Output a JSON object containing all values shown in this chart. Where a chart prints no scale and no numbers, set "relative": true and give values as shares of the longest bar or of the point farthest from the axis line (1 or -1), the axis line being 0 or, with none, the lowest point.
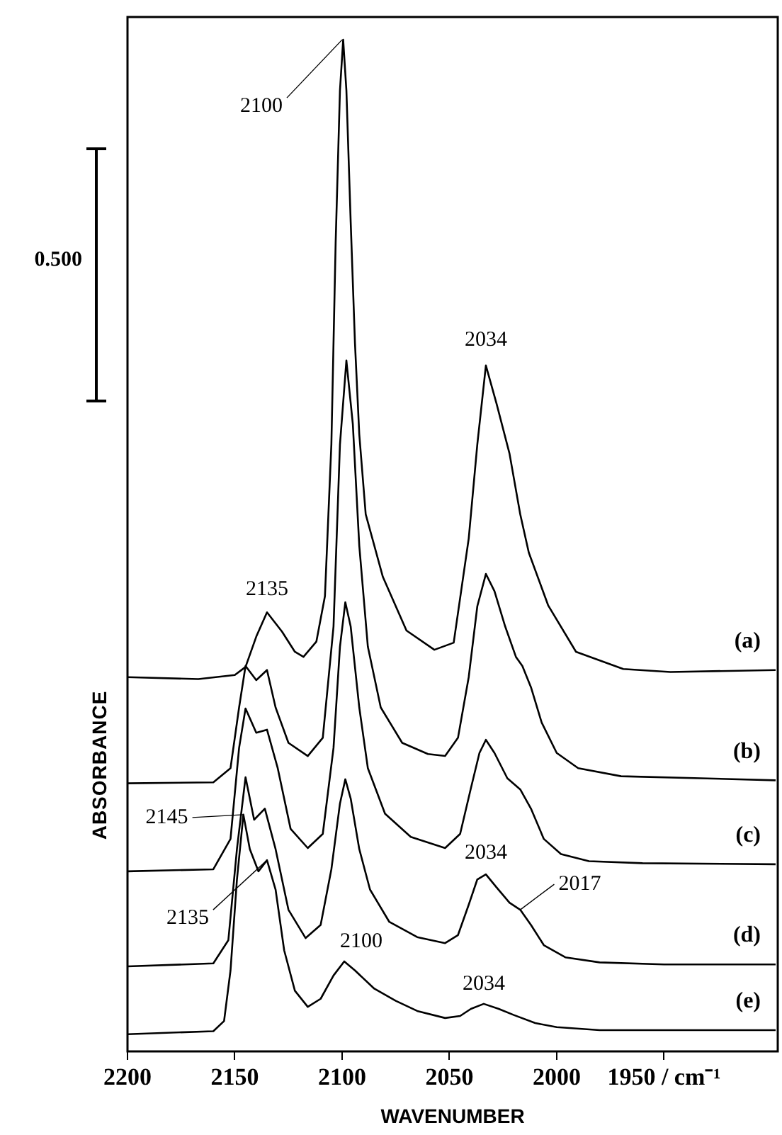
{
  "chart_data": {
    "type": "line",
    "relative": true,
    "xlabel": "WAVENUMBER",
    "ylabel": "ABSORBANCE",
    "xlim": [
      2200,
      1897
    ],
    "xticks": [
      2200,
      2150,
      2100,
      2050,
      2000,
      {
        "value": 1950,
        "label": "1950 / cm⁻¹"
      }
    ],
    "marker": "none",
    "line_style": "solid",
    "annotations": [
      {
        "text": "2100",
        "x": 2100,
        "y": 1.0
      },
      {
        "text": "2034",
        "x": 2033,
        "y": 0.678
      },
      {
        "text": "2135",
        "x": 2135,
        "y": 0.434
      },
      {
        "text": "2145",
        "x": 2146,
        "y": 0.234
      },
      {
        "text": "2135",
        "x": 2135,
        "y": 0.189
      },
      {
        "text": "2034",
        "x": 2033,
        "y": 0.175
      },
      {
        "text": "2017",
        "x": 2017,
        "y": 0.14
      },
      {
        "text": "2100",
        "x": 2099,
        "y": 0.089
      },
      {
        "text": "2034",
        "x": 2034,
        "y": 0.047
      },
      "0.500"
    ],
    "series": [
      {
        "name": "(a)",
        "color": "#000000",
        "x": [
          2200,
          2167,
          2150,
          2145,
          2140,
          2135,
          2128,
          2122,
          2118,
          2112,
          2108,
          2105,
          2103,
          2101,
          2099.5,
          2098,
          2096,
          2094,
          2092,
          2089,
          2081,
          2070,
          2057,
          2048,
          2041,
          2037,
          2033,
          2028,
          2022,
          2017,
          2013,
          2004,
          1991,
          1969,
          1947,
          1898
        ],
        "values": [
          0.37,
          0.368,
          0.372,
          0.38,
          0.41,
          0.434,
          0.415,
          0.395,
          0.39,
          0.405,
          0.45,
          0.6,
          0.8,
          0.95,
          1.0,
          0.95,
          0.82,
          0.7,
          0.61,
          0.531,
          0.469,
          0.416,
          0.397,
          0.404,
          0.507,
          0.6,
          0.678,
          0.64,
          0.591,
          0.531,
          0.493,
          0.441,
          0.395,
          0.378,
          0.375,
          0.377
        ]
      },
      {
        "name": "(b)",
        "color": "#000000",
        "x": [
          2200,
          2160,
          2152,
          2148,
          2145,
          2140,
          2135,
          2131,
          2125,
          2116,
          2109,
          2104,
          2101,
          2098,
          2095,
          2092,
          2088,
          2082,
          2072,
          2060,
          2052,
          2046,
          2041,
          2037,
          2033,
          2029,
          2024,
          2019,
          2016,
          2012,
          2007,
          2000,
          1990,
          1970,
          1898
        ],
        "values": [
          0.265,
          0.266,
          0.28,
          0.34,
          0.381,
          0.367,
          0.377,
          0.34,
          0.305,
          0.292,
          0.31,
          0.42,
          0.6,
          0.683,
          0.62,
          0.5,
          0.4,
          0.34,
          0.305,
          0.294,
          0.292,
          0.31,
          0.37,
          0.44,
          0.472,
          0.455,
          0.42,
          0.39,
          0.381,
          0.36,
          0.325,
          0.295,
          0.28,
          0.272,
          0.268
        ]
      },
      {
        "name": "(c)",
        "color": "#000000",
        "x": [
          2200,
          2160,
          2152,
          2148,
          2145,
          2140,
          2135,
          2130,
          2124,
          2116,
          2109,
          2104,
          2101,
          2098.5,
          2096,
          2092,
          2088,
          2080,
          2068,
          2052,
          2045,
          2040,
          2036,
          2033,
          2029,
          2023,
          2017,
          2012,
          2006,
          1998,
          1985,
          1960,
          1898
        ],
        "values": [
          0.178,
          0.18,
          0.21,
          0.3,
          0.339,
          0.315,
          0.318,
          0.28,
          0.22,
          0.201,
          0.215,
          0.3,
          0.4,
          0.444,
          0.42,
          0.34,
          0.28,
          0.235,
          0.212,
          0.201,
          0.215,
          0.26,
          0.295,
          0.308,
          0.295,
          0.27,
          0.259,
          0.24,
          0.21,
          0.195,
          0.188,
          0.186,
          0.185
        ]
      },
      {
        "name": "(d)",
        "color": "#000000",
        "x": [
          2200,
          2160,
          2153,
          2149,
          2145,
          2141,
          2136,
          2131,
          2125,
          2117,
          2110,
          2105,
          2101,
          2098.5,
          2096,
          2092,
          2087,
          2078,
          2065,
          2052,
          2046,
          2041,
          2037,
          2033,
          2028,
          2022,
          2017,
          2012,
          2006,
          1996,
          1980,
          1950,
          1898
        ],
        "values": [
          0.084,
          0.087,
          0.11,
          0.2,
          0.271,
          0.229,
          0.24,
          0.2,
          0.14,
          0.112,
          0.125,
          0.18,
          0.245,
          0.269,
          0.25,
          0.2,
          0.16,
          0.128,
          0.113,
          0.107,
          0.115,
          0.145,
          0.17,
          0.175,
          0.162,
          0.147,
          0.14,
          0.125,
          0.105,
          0.093,
          0.088,
          0.086,
          0.086
        ]
      },
      {
        "name": "(e)",
        "color": "#000000",
        "x": [
          2200,
          2160,
          2155,
          2152,
          2149,
          2146,
          2143,
          2139,
          2135,
          2131,
          2127,
          2122,
          2116,
          2110,
          2104,
          2099,
          2094,
          2085,
          2075,
          2065,
          2052,
          2045,
          2040,
          2034,
          2027,
          2020,
          2010,
          2000,
          1980,
          1898
        ],
        "values": [
          0.017,
          0.02,
          0.03,
          0.08,
          0.17,
          0.234,
          0.2,
          0.178,
          0.189,
          0.16,
          0.1,
          0.06,
          0.044,
          0.052,
          0.075,
          0.089,
          0.08,
          0.062,
          0.05,
          0.04,
          0.033,
          0.035,
          0.042,
          0.047,
          0.042,
          0.036,
          0.028,
          0.024,
          0.021,
          0.021
        ]
      }
    ]
  }
}
